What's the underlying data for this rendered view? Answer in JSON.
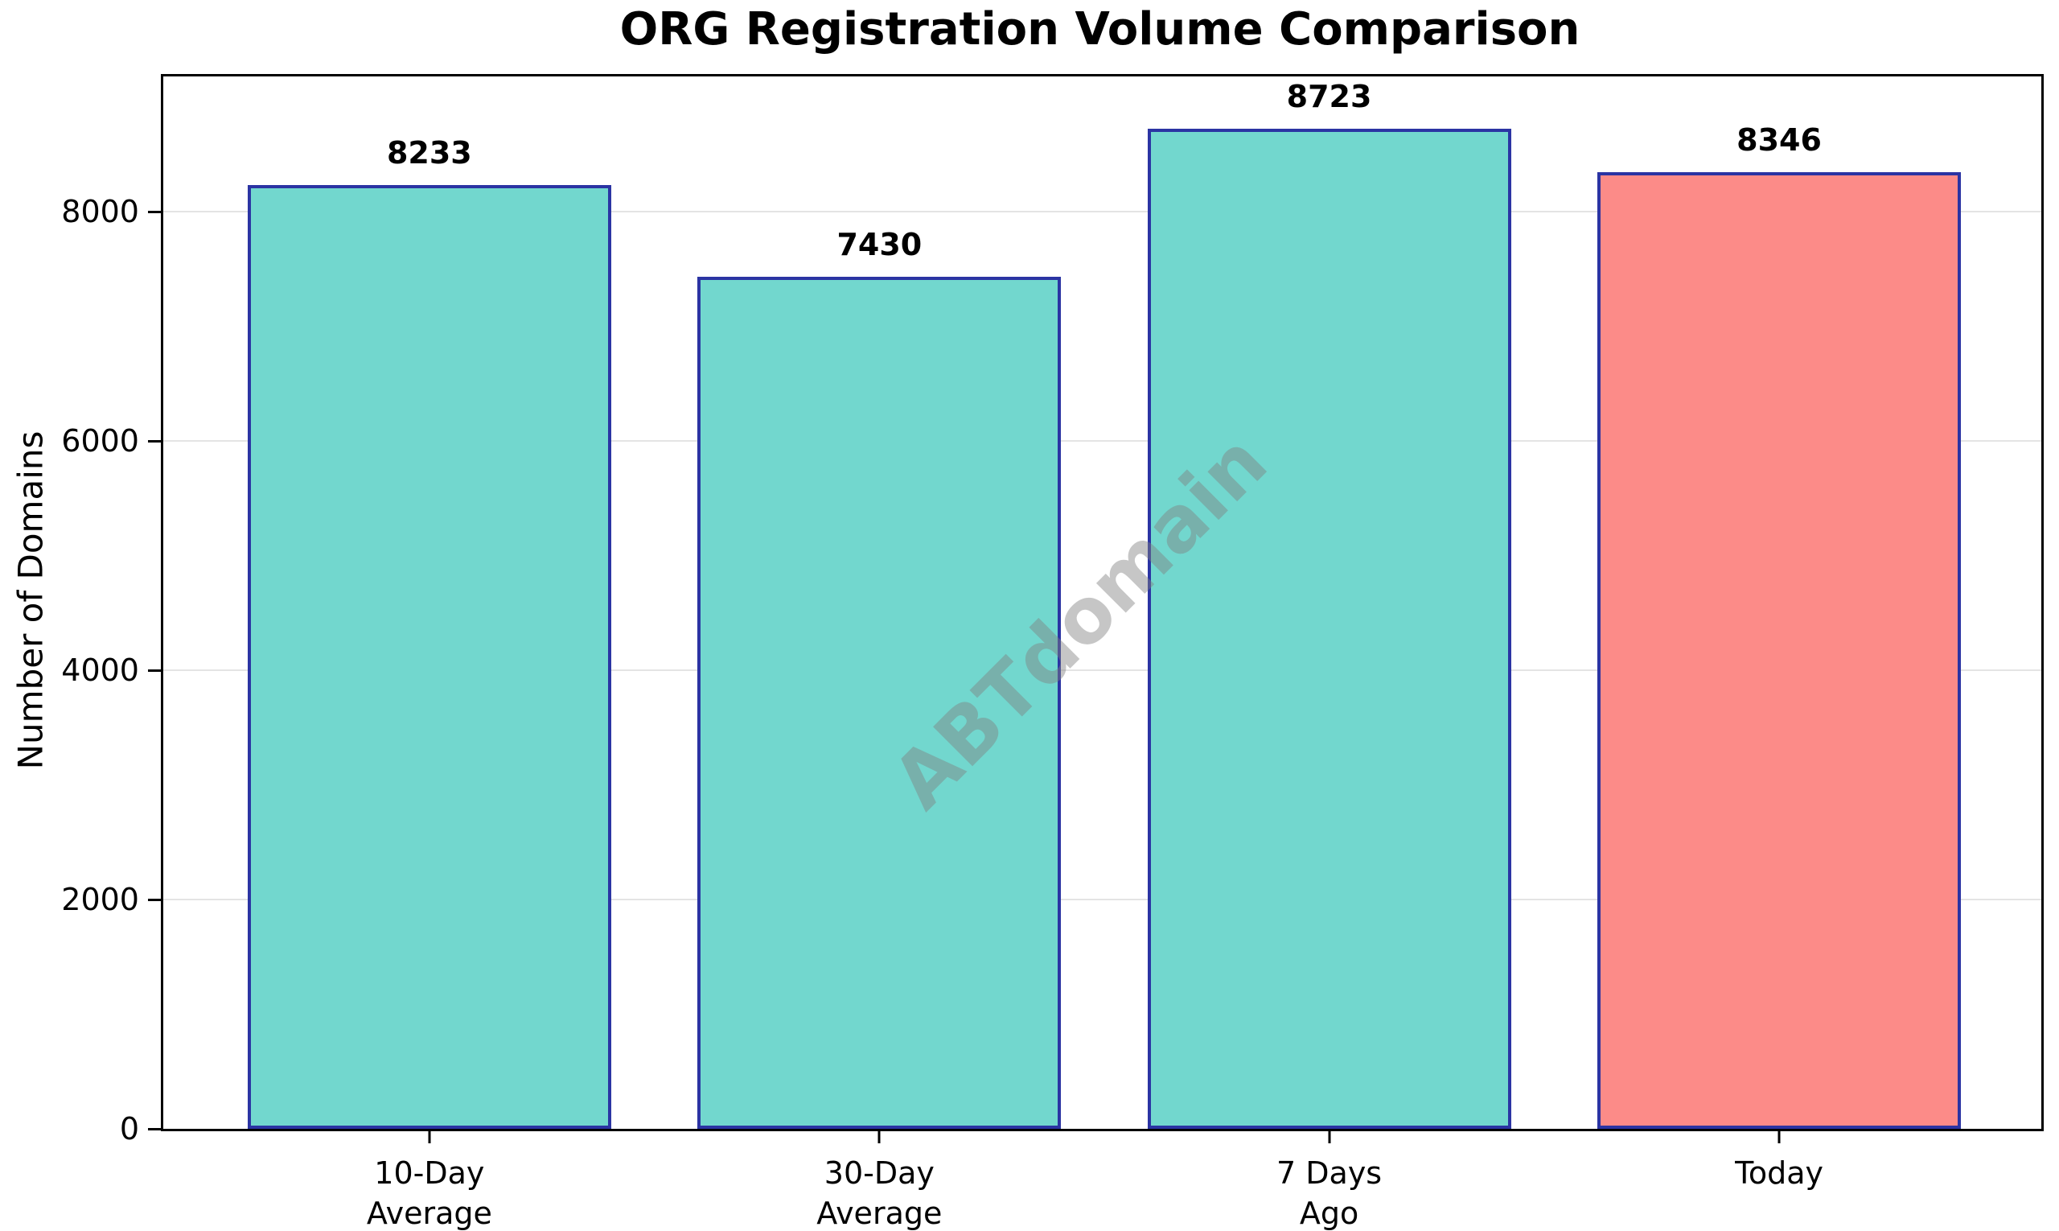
{
  "chart_data": {
    "type": "bar",
    "title": "ORG Registration Volume Comparison",
    "ylabel": "Number of Domains",
    "xlabel": "",
    "categories": [
      "10-Day Average",
      "30-Day Average",
      "7 Days Ago",
      "Today"
    ],
    "category_lines": [
      [
        "10-Day",
        "Average"
      ],
      [
        "30-Day",
        "Average"
      ],
      [
        "7 Days",
        "Ago"
      ],
      [
        "Today"
      ]
    ],
    "values": [
      8233,
      7430,
      8723,
      8346
    ],
    "value_labels": [
      "8233",
      "7430",
      "8723",
      "8346"
    ],
    "yticks": [
      0,
      2000,
      4000,
      6000,
      8000
    ],
    "ytick_labels": [
      "0",
      "2000",
      "4000",
      "6000",
      "8000"
    ],
    "ylim": [
      0,
      9180
    ],
    "grid": "horizontal-light-gray",
    "legend": "none",
    "colors": {
      "bar_fills": [
        "#72D7CE",
        "#72D7CE",
        "#72D7CE",
        "#FC8B88"
      ],
      "bar_edge": "#2B34A3",
      "gridline": "#E4E4E4",
      "spine": "#000000",
      "text": "#000000"
    },
    "watermark": {
      "text": "ABTdomain",
      "color": "rgba(128,128,128,0.45)",
      "rotation_deg": -45
    }
  }
}
